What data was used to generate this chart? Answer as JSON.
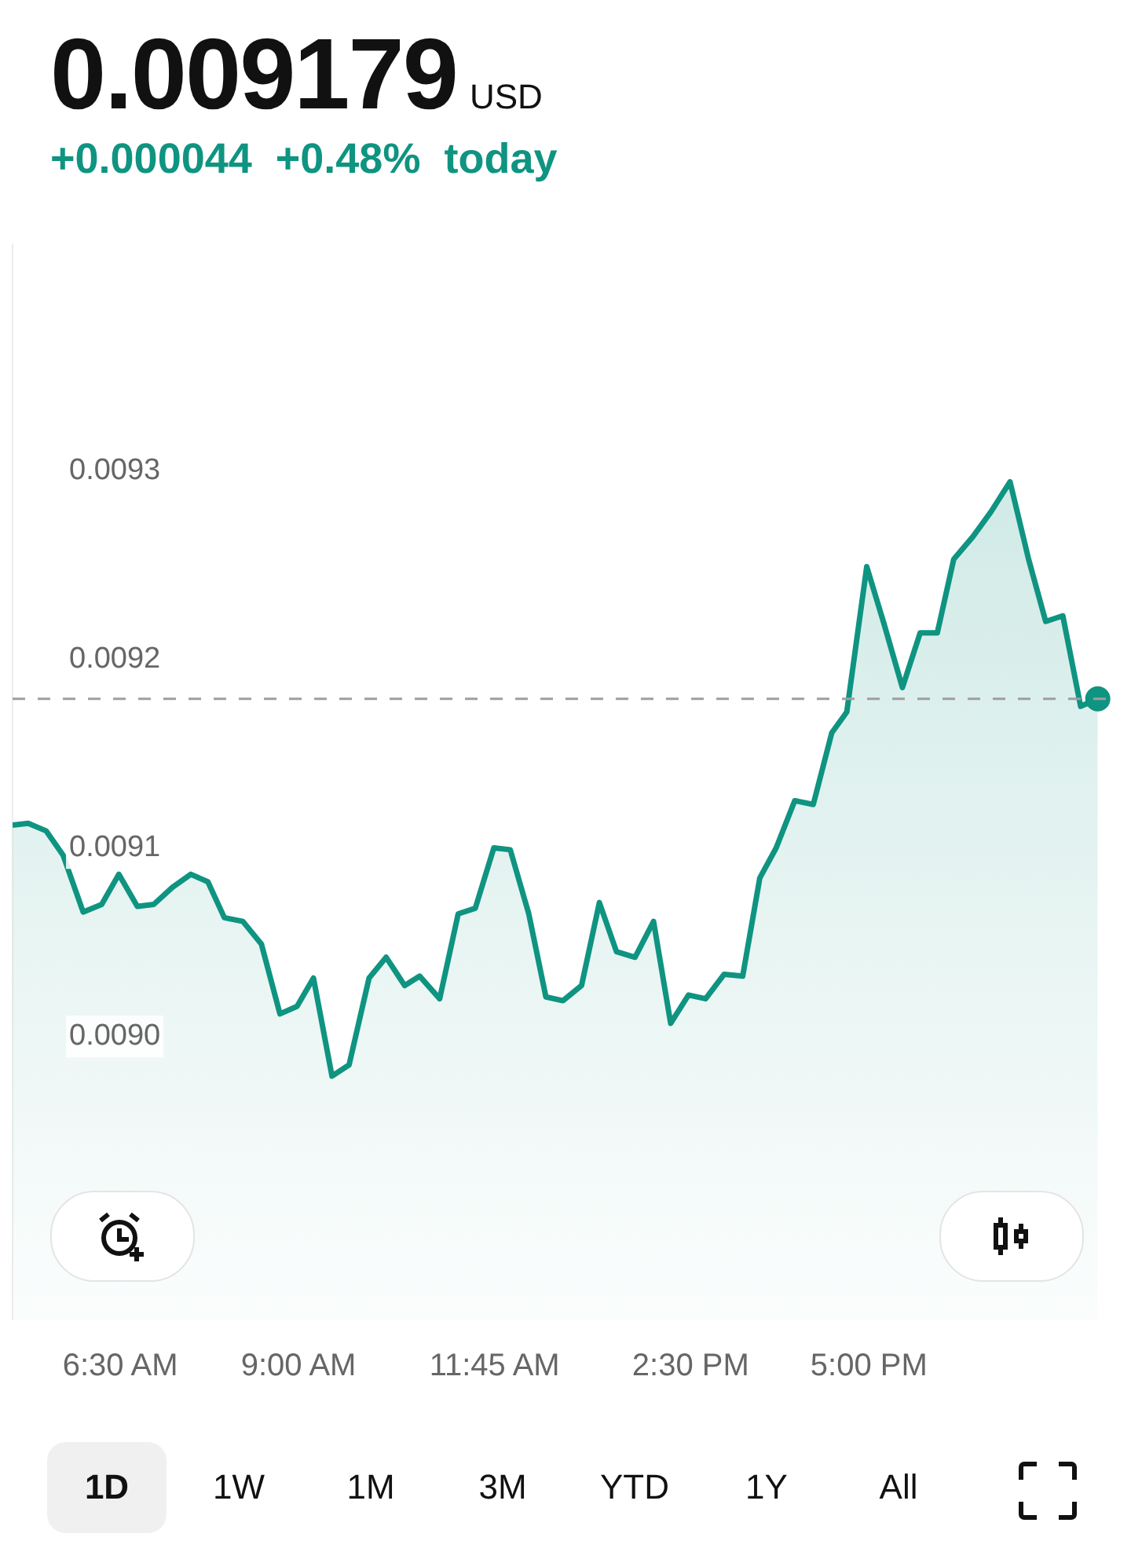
{
  "chart_data": {
    "type": "area",
    "title": "0.009179",
    "subtitle": "+0.000044  +0.48%  today",
    "annotations": [
      "USD",
      "1D",
      "1W",
      "1M",
      "3M",
      "YTD",
      "1Y",
      "All"
    ],
    "x": [
      4.99,
      5.21,
      5.46,
      5.7,
      5.98,
      6.24,
      6.48,
      6.74,
      6.97,
      7.23,
      7.49,
      7.73,
      7.96,
      8.22,
      8.48,
      8.74,
      8.98,
      9.21,
      9.47,
      9.71,
      9.99,
      10.23,
      10.49,
      10.7,
      10.98,
      11.24,
      11.48,
      11.74,
      11.97,
      12.23,
      12.47,
      12.71,
      12.97,
      13.22,
      13.46,
      13.72,
      13.98,
      14.22,
      14.47,
      14.71,
      14.97,
      15.23,
      15.47,
      15.7,
      15.96,
      16.22,
      16.48,
      16.69,
      16.97,
      17.21,
      17.47,
      17.72,
      17.96,
      18.19,
      18.46,
      18.71,
      18.98,
      19.24,
      19.48,
      19.72,
      19.97,
      20.21
    ],
    "series": [
      {
        "color": "#0f9481",
        "values": [
          0.009112,
          0.009113,
          0.009109,
          0.009096,
          0.009066,
          0.00907,
          0.009086,
          0.009069,
          0.00907,
          0.009079,
          0.009086,
          0.009082,
          0.009063,
          0.009061,
          0.009049,
          0.009012,
          0.009016,
          0.009031,
          0.008979,
          0.008985,
          0.009031,
          0.009042,
          0.009027,
          0.009032,
          0.00902,
          0.009065,
          0.009068,
          0.0091,
          0.009099,
          0.009065,
          0.009021,
          0.009019,
          0.009027,
          0.009071,
          0.009045,
          0.009042,
          0.009061,
          0.009007,
          0.009022,
          0.00902,
          0.009033,
          0.009032,
          0.009084,
          0.0091,
          0.009125,
          0.009123,
          0.009161,
          0.009172,
          0.009249,
          0.009219,
          0.009185,
          0.009214,
          0.009214,
          0.009253,
          0.009265,
          0.009278,
          0.009294,
          0.009253,
          0.00922,
          0.009223,
          0.009175,
          0.009179
        ]
      }
    ],
    "xlim": [
      4.99,
      20.5
    ],
    "xticks": [
      {
        "value": 6.5,
        "label": "6:30 AM"
      },
      {
        "value": 9,
        "label": "9:00 AM"
      },
      {
        "value": 11.75,
        "label": "11:45 AM"
      },
      {
        "value": 14.5,
        "label": "2:30 PM"
      },
      {
        "value": 17,
        "label": "5:00 PM"
      }
    ],
    "ylim": [
      0.00885,
      0.00942
    ],
    "yticks": [
      {
        "value": 0.009,
        "label": "0.0090"
      },
      0.0091,
      0.0092,
      0.0093
    ],
    "ref_lines": [
      {
        "axis": "y",
        "value": 0.009179,
        "color": "#9e9e9e",
        "line_style": "dashed"
      }
    ],
    "grid": false,
    "legend": false
  }
}
